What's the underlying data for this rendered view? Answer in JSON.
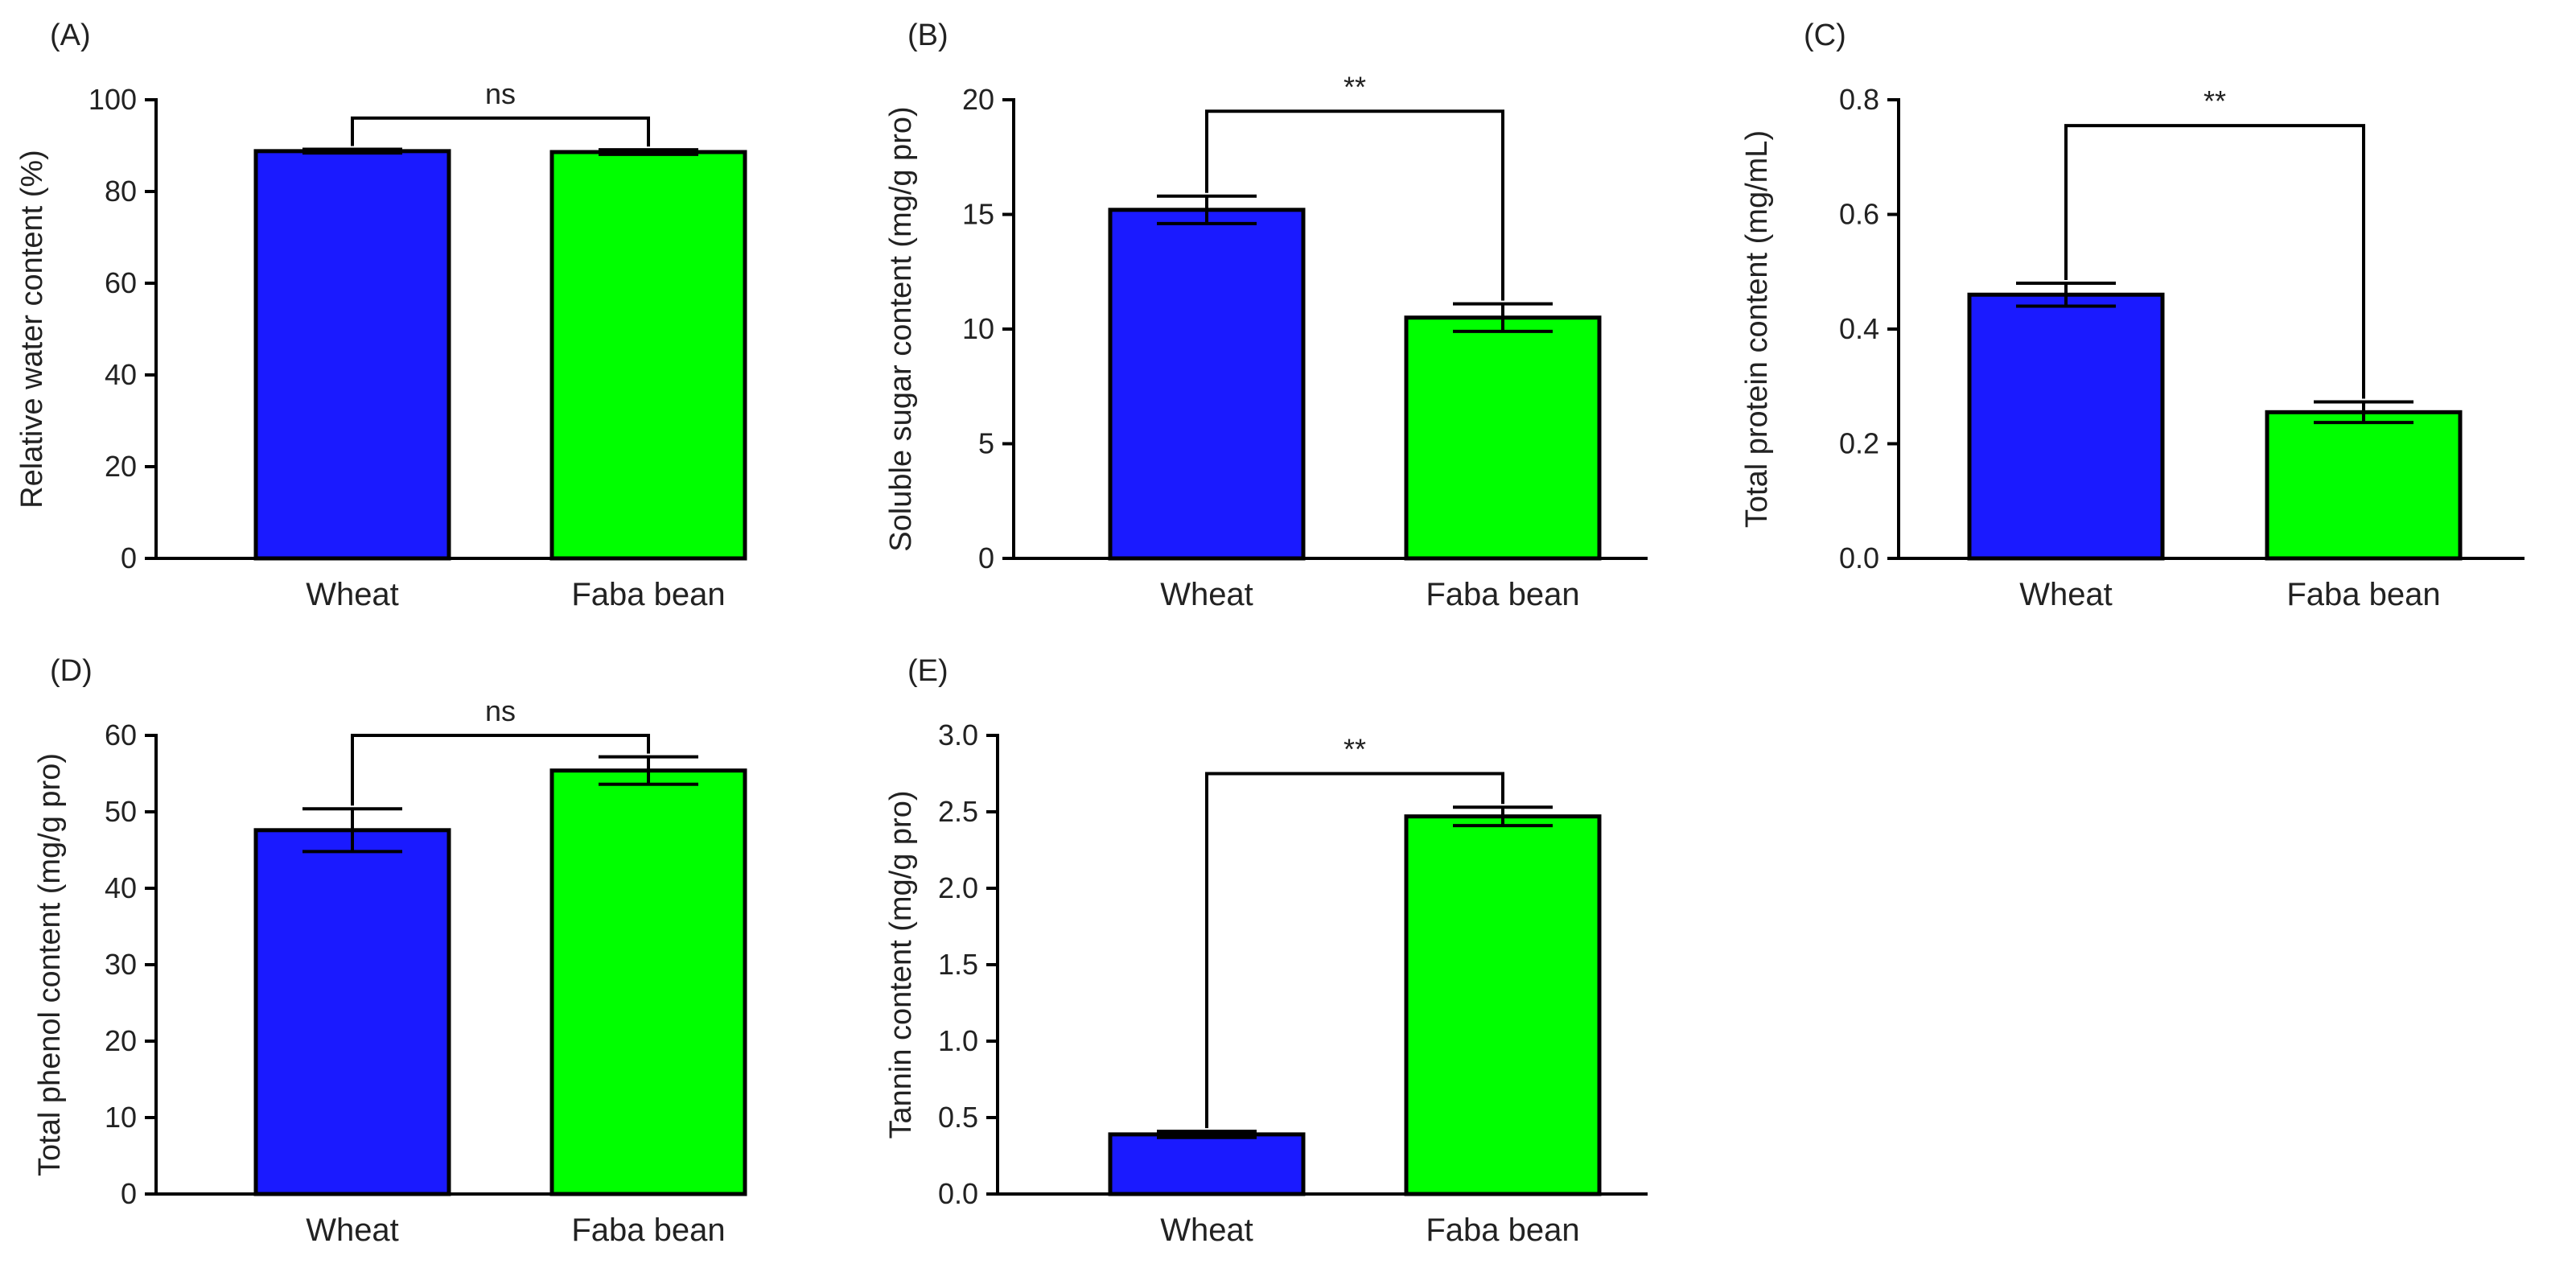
{
  "colors": {
    "wheat": "#1a1aff",
    "faba": "#00ff00",
    "axis": "#000000",
    "text": "#222222"
  },
  "chart_data": [
    {
      "panel": "(A)",
      "type": "bar",
      "categories": [
        "Wheat",
        "Faba bean"
      ],
      "values": [
        88.8,
        88.6
      ],
      "errors": [
        0.4,
        0.5
      ],
      "ylabel": "Relative water content (%)",
      "ylim": [
        0,
        100
      ],
      "yticks": [
        0,
        20,
        40,
        60,
        80,
        100
      ],
      "ytick_labels": [
        "0",
        "20",
        "40",
        "60",
        "80",
        "100"
      ],
      "significance": "ns",
      "bracket_y": 96
    },
    {
      "panel": "(B)",
      "type": "bar",
      "categories": [
        "Wheat",
        "Faba bean"
      ],
      "values": [
        15.2,
        10.5
      ],
      "errors": [
        0.6,
        0.6
      ],
      "ylabel": "Soluble sugar content (mg/g pro)",
      "ylim": [
        0,
        20
      ],
      "yticks": [
        0,
        5,
        10,
        15,
        20
      ],
      "ytick_labels": [
        "0",
        "5",
        "10",
        "15",
        "20"
      ],
      "significance": "**",
      "bracket_y": 19.5
    },
    {
      "panel": "(C)",
      "type": "bar",
      "categories": [
        "Wheat",
        "Faba bean"
      ],
      "values": [
        0.46,
        0.255
      ],
      "errors": [
        0.02,
        0.018
      ],
      "ylabel": "Total protein content (mg/mL)",
      "ylim": [
        0,
        0.8
      ],
      "yticks": [
        0,
        0.2,
        0.4,
        0.6,
        0.8
      ],
      "ytick_labels": [
        "0.0",
        "0.2",
        "0.4",
        "0.6",
        "0.8"
      ],
      "significance": "**",
      "bracket_y": 0.755
    },
    {
      "panel": "(D)",
      "type": "bar",
      "categories": [
        "Wheat",
        "Faba bean"
      ],
      "values": [
        47.6,
        55.4
      ],
      "errors": [
        2.8,
        1.8
      ],
      "ylabel": "Total phenol content (mg/g pro)",
      "ylim": [
        0,
        60
      ],
      "yticks": [
        0,
        10,
        20,
        30,
        40,
        50,
        60
      ],
      "ytick_labels": [
        "0",
        "10",
        "20",
        "30",
        "40",
        "50",
        "60"
      ],
      "significance": "ns",
      "bracket_y": 60
    },
    {
      "panel": "(E)",
      "type": "bar",
      "categories": [
        "Wheat",
        "Faba bean"
      ],
      "values": [
        0.39,
        2.47
      ],
      "errors": [
        0.02,
        0.06
      ],
      "ylabel": "Tannin content (mg/g pro)",
      "ylim": [
        0,
        3.0
      ],
      "yticks": [
        0,
        0.5,
        1.0,
        1.5,
        2.0,
        2.5,
        3.0
      ],
      "ytick_labels": [
        "0.0",
        "0.5",
        "1.0",
        "1.5",
        "2.0",
        "2.5",
        "3.0"
      ],
      "significance": "**",
      "bracket_y": 2.75
    }
  ]
}
